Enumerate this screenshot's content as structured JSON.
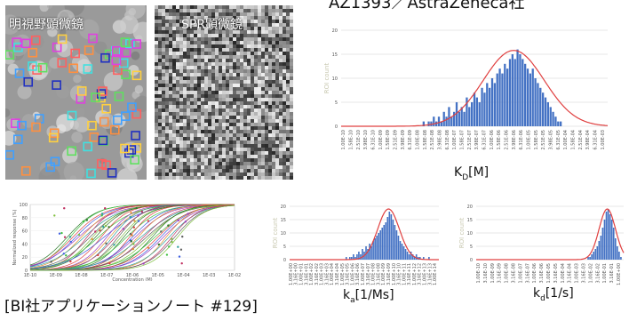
{
  "header": {
    "title": "AZ1393／AstraZeneca社"
  },
  "micrographs": [
    {
      "label": "明視野顕微鏡"
    },
    {
      "label": "SPR顕微鏡"
    }
  ],
  "colors": {
    "bar": "#4472c4",
    "fit": "#e04040",
    "grid": "#cfcfcf"
  },
  "footer": {
    "text": "[BI社アプリケーションノート #129]"
  },
  "chart_data": [
    {
      "type": "bar",
      "title": "",
      "xlabel_main": "K",
      "xlabel_sub": "D",
      "xlabel_unit": "[M]",
      "ylabel": "ROI count",
      "ylim": [
        0,
        20
      ],
      "yticks": [
        "0",
        "5",
        "10",
        "15",
        "20"
      ],
      "xticks": [
        "1.00E-10",
        "1.58E-10",
        "2.51E-10",
        "3.98E-10",
        "6.31E-10",
        "1.00E-09",
        "1.58E-09",
        "2.51E-09",
        "3.98E-09",
        "6.31E-09",
        "1.00E-08",
        "1.58E-08",
        "2.51E-08",
        "3.98E-08",
        "6.31E-08",
        "1.00E-07",
        "1.58E-07",
        "2.51E-07",
        "3.98E-07",
        "6.31E-07",
        "1.00E-06",
        "1.58E-06",
        "2.51E-06",
        "3.98E-06",
        "6.31E-06",
        "1.00E-05",
        "1.58E-05",
        "2.51E-05",
        "3.98E-05",
        "6.31E-05",
        "1.00E-04",
        "1.58E-04",
        "2.51E-04",
        "3.98E-04",
        "6.31E-04",
        "1.00E-03"
      ],
      "values": [
        0,
        0,
        0,
        0,
        0,
        0,
        0,
        0,
        0,
        0,
        0,
        0,
        0,
        0,
        0,
        0,
        0,
        0,
        0,
        0,
        0,
        0,
        0,
        0,
        0,
        0,
        0,
        0,
        0,
        0,
        0,
        0,
        1,
        0,
        1,
        1,
        2,
        1,
        2,
        1,
        3,
        2,
        4,
        2,
        3,
        5,
        3,
        4,
        3,
        6,
        4,
        5,
        7,
        6,
        5,
        8,
        7,
        9,
        8,
        10,
        9,
        11,
        12,
        11,
        13,
        12,
        14,
        15,
        14,
        16,
        15,
        14,
        13,
        12,
        11,
        12,
        10,
        9,
        8,
        7,
        6,
        5,
        4,
        3,
        2,
        1,
        1,
        0,
        0,
        0,
        0,
        0,
        0,
        0,
        0,
        0,
        0,
        0,
        0,
        0,
        0,
        0,
        0,
        0,
        0
      ],
      "fit": {
        "mu": 68,
        "sigma": 12,
        "peak": 15.8
      }
    },
    {
      "type": "line",
      "title": "",
      "xlabel": "Concentration (M)",
      "ylabel": "Normalized response (%)",
      "ylim": [
        0,
        100
      ],
      "yticks": [
        "0",
        "20",
        "40",
        "60",
        "80",
        "100"
      ],
      "xticks": [
        "1E-10",
        "1E-09",
        "1E-08",
        "1E-07",
        "1E-06",
        "1E-05",
        "1E-04",
        "1E-03",
        "1E-02"
      ],
      "curves": {
        "count": 40,
        "ec50_min": 0.18,
        "ec50_max": 0.72
      }
    },
    {
      "type": "bar",
      "title": "",
      "xlabel_main": "k",
      "xlabel_sub": "a",
      "xlabel_unit": "[1/Ms]",
      "ylabel": "ROI count",
      "ylim": [
        0,
        20
      ],
      "yticks": [
        "0",
        "5",
        "10",
        "15",
        "20"
      ],
      "xticks": [
        "1.00E+00",
        "3.16E+00",
        "1.00E+01",
        "3.16E+01",
        "1.00E+02",
        "3.16E+02",
        "1.00E+03",
        "3.16E+03",
        "1.00E+04",
        "3.16E+04",
        "1.00E+05",
        "3.16E+05",
        "1.00E+06",
        "3.16E+06",
        "1.00E+07",
        "3.16E+07",
        "1.00E+08",
        "3.16E+08",
        "1.00E+09",
        "3.16E+09",
        "1.00E+10",
        "3.16E+10",
        "1.00E+11",
        "3.16E+11",
        "1.00E+12",
        "3.16E+12",
        "1.00E+13",
        "3.16E+13",
        "1.00E+14"
      ],
      "values": [
        0,
        0,
        0,
        0,
        0,
        0,
        0,
        0,
        0,
        0,
        0,
        0,
        0,
        0,
        0,
        0,
        0,
        0,
        0,
        0,
        0,
        0,
        0,
        0,
        0,
        0,
        0,
        0,
        0,
        0,
        0,
        1,
        0,
        1,
        1,
        2,
        1,
        2,
        3,
        2,
        4,
        3,
        5,
        4,
        6,
        5,
        7,
        8,
        9,
        10,
        11,
        12,
        13,
        14,
        16,
        18,
        17,
        15,
        13,
        11,
        9,
        7,
        6,
        5,
        4,
        3,
        2,
        3,
        2,
        1,
        2,
        1,
        1,
        0,
        1,
        0,
        0,
        1,
        0,
        0,
        0,
        0,
        0
      ],
      "fit": {
        "mu": 55,
        "sigma": 6,
        "peak": 19
      }
    },
    {
      "type": "bar",
      "title": "",
      "xlabel_main": "k",
      "xlabel_sub": "d",
      "xlabel_unit": "[1/s]",
      "ylabel": "ROI count",
      "ylim": [
        0,
        20
      ],
      "yticks": [
        "0",
        "5",
        "10",
        "15",
        "20"
      ],
      "xticks": [
        "1.00E-10",
        "3.16E-10",
        "1.00E-09",
        "3.16E-09",
        "1.00E-08",
        "3.16E-08",
        "1.00E-07",
        "3.16E-07",
        "1.00E-06",
        "3.16E-06",
        "1.00E-05",
        "3.16E-05",
        "1.00E-04",
        "3.16E-04",
        "1.00E-03",
        "3.16E-03",
        "1.00E-02",
        "3.16E-02",
        "1.00E-01",
        "3.16E-01",
        "1.00E+00"
      ],
      "values": [
        0,
        0,
        0,
        0,
        0,
        0,
        0,
        0,
        0,
        0,
        0,
        0,
        0,
        0,
        0,
        0,
        0,
        0,
        0,
        0,
        0,
        0,
        0,
        0,
        0,
        0,
        0,
        0,
        0,
        0,
        0,
        0,
        0,
        0,
        0,
        0,
        0,
        0,
        0,
        0,
        0,
        0,
        0,
        0,
        0,
        0,
        0,
        0,
        0,
        0,
        0,
        0,
        0,
        0,
        0,
        0,
        0,
        0,
        0,
        0,
        0,
        1,
        1,
        2,
        3,
        4,
        5,
        7,
        9,
        12,
        15,
        18,
        19,
        17,
        15,
        12,
        8,
        5,
        3,
        1,
        0
      ],
      "fit": {
        "mu": 72,
        "sigma": 4.5,
        "peak": 19
      }
    }
  ]
}
